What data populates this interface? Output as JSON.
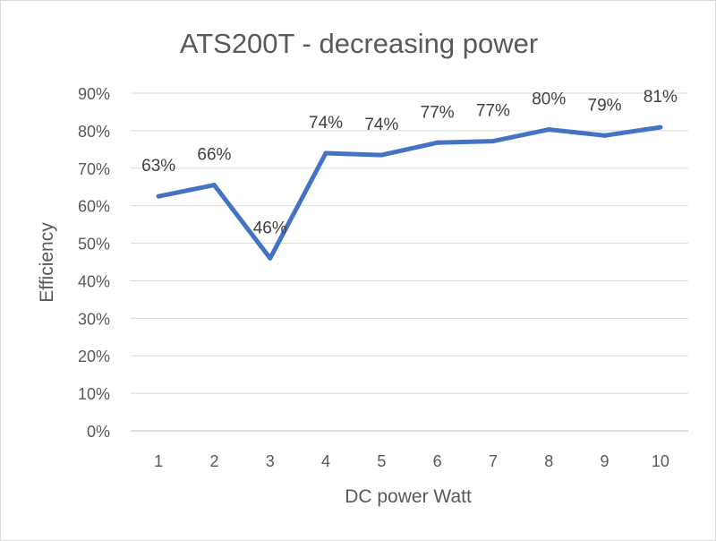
{
  "chart_data": {
    "type": "line",
    "title": "ATS200T - decreasing power",
    "xlabel": "DC power Watt",
    "ylabel": "Efficiency",
    "categories": [
      "1",
      "2",
      "3",
      "4",
      "5",
      "6",
      "7",
      "8",
      "9",
      "10"
    ],
    "series": [
      {
        "values": [
          0.625,
          0.655,
          0.46,
          0.74,
          0.735,
          0.768,
          0.772,
          0.803,
          0.787,
          0.809
        ],
        "data_labels": [
          "63%",
          "66%",
          "46%",
          "74%",
          "74%",
          "77%",
          "77%",
          "80%",
          "79%",
          "81%"
        ],
        "color": "#4472c4"
      }
    ],
    "ylim": [
      0,
      0.9
    ],
    "y_ticks": [
      "0%",
      "10%",
      "20%",
      "30%",
      "40%",
      "50%",
      "60%",
      "70%",
      "80%",
      "90%"
    ],
    "grid": true,
    "legend": "none",
    "colors": {
      "gridline": "#d9d9d9",
      "axis": "#bfbfbf",
      "text": "#595959"
    }
  }
}
